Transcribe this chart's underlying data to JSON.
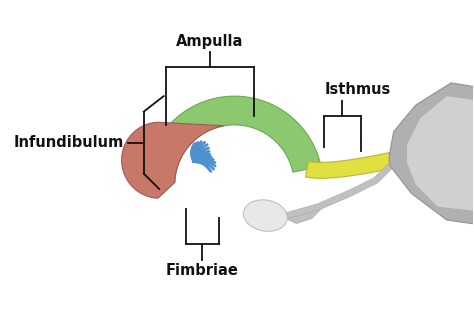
{
  "labels": {
    "ampulla": "Ampulla",
    "isthmus": "Isthmus",
    "infundibulum": "Infundibulum",
    "fimbriae": "Fimbriae"
  },
  "colors": {
    "ampulla": "#8cc870",
    "ampulla_edge": "#6aaa50",
    "isthmus": "#e0e040",
    "isthmus_edge": "#b8b830",
    "infundibulum": "#c87868",
    "infundibulum_edge": "#a05858",
    "fimbriae": "#5090d0",
    "uterus_dark": "#909090",
    "uterus_mid": "#b0b0b0",
    "uterus_light": "#d0d0d0",
    "ovary": "#e8e8e8",
    "ovary_stalk": "#c0c0c0",
    "background": "#ffffff",
    "annotation": "#111111"
  },
  "font_size": 10.5,
  "font_weight": "bold",
  "fig_width": 4.74,
  "fig_height": 3.25,
  "dpi": 100
}
